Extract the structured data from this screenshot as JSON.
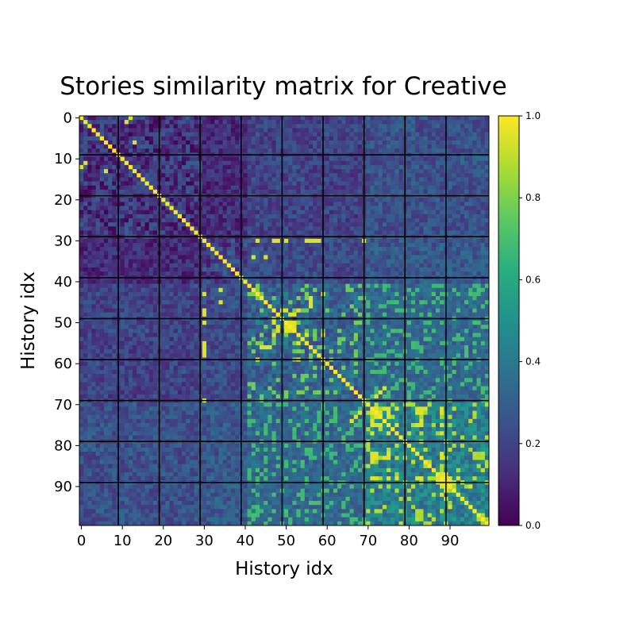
{
  "chart_data": {
    "type": "heatmap",
    "title": "Stories similarity matrix for Creative",
    "xlabel": "History idx",
    "ylabel": "History idx",
    "n": 100,
    "x_ticks": [
      0,
      10,
      20,
      30,
      40,
      50,
      60,
      70,
      80,
      90
    ],
    "y_ticks": [
      0,
      10,
      20,
      30,
      40,
      50,
      60,
      70,
      80,
      90
    ],
    "grid": true,
    "grid_every": 10,
    "colormap": "viridis",
    "vmin": 0.0,
    "vmax": 1.0,
    "colorbar_ticks": [
      "0.0",
      "0.2",
      "0.4",
      "0.6",
      "0.8",
      "1.0"
    ],
    "colorbar_position": "right",
    "diagonal_value": 1.0,
    "clusters": [
      {
        "range": [
          0,
          29
        ],
        "typical_value": 0.15
      },
      {
        "range": [
          30,
          40
        ],
        "typical_value": 0.2
      },
      {
        "range": [
          41,
          69
        ],
        "typical_value": 0.35
      },
      {
        "range": [
          70,
          99
        ],
        "typical_value": 0.45
      }
    ],
    "high_similarity_cells": [
      [
        0,
        12
      ],
      [
        12,
        0
      ],
      [
        11,
        1
      ],
      [
        1,
        11
      ],
      [
        6,
        13
      ],
      [
        13,
        6
      ],
      [
        30,
        43
      ],
      [
        43,
        30
      ],
      [
        30,
        48
      ],
      [
        48,
        30
      ],
      [
        30,
        50
      ],
      [
        50,
        30
      ],
      [
        30,
        56
      ],
      [
        56,
        30
      ],
      [
        30,
        57
      ],
      [
        57,
        30
      ],
      [
        30,
        58
      ],
      [
        58,
        30
      ],
      [
        30,
        69
      ],
      [
        69,
        30
      ],
      [
        34,
        45
      ],
      [
        45,
        34
      ],
      [
        42,
        34
      ],
      [
        34,
        42
      ],
      [
        44,
        56
      ],
      [
        56,
        44
      ],
      [
        45,
        56
      ],
      [
        56,
        45
      ],
      [
        46,
        56
      ],
      [
        56,
        46
      ],
      [
        47,
        30
      ],
      [
        30,
        47
      ],
      [
        47,
        49
      ],
      [
        49,
        47
      ],
      [
        47,
        50
      ],
      [
        50,
        47
      ],
      [
        48,
        51
      ],
      [
        51,
        48
      ],
      [
        48,
        52
      ],
      [
        52,
        48
      ],
      [
        50,
        51
      ],
      [
        51,
        50
      ],
      [
        50,
        52
      ],
      [
        52,
        50
      ],
      [
        51,
        52
      ],
      [
        52,
        51
      ],
      [
        53,
        47
      ],
      [
        47,
        53
      ],
      [
        53,
        55
      ],
      [
        55,
        53
      ],
      [
        55,
        30
      ],
      [
        30,
        55
      ],
      [
        59,
        43
      ],
      [
        43,
        59
      ],
      [
        59,
        53
      ],
      [
        53,
        59
      ],
      [
        69,
        30
      ],
      [
        72,
        71
      ],
      [
        71,
        72
      ],
      [
        72,
        73
      ],
      [
        73,
        72
      ],
      [
        75,
        71
      ],
      [
        71,
        75
      ],
      [
        75,
        72
      ],
      [
        72,
        75
      ],
      [
        75,
        73
      ],
      [
        73,
        75
      ],
      [
        74,
        71
      ],
      [
        71,
        74
      ],
      [
        77,
        71
      ],
      [
        71,
        77
      ],
      [
        77,
        75
      ],
      [
        75,
        77
      ],
      [
        82,
        71
      ],
      [
        71,
        82
      ],
      [
        82,
        72
      ],
      [
        72,
        82
      ],
      [
        82,
        75
      ],
      [
        75,
        82
      ],
      [
        83,
        71
      ],
      [
        71,
        83
      ],
      [
        83,
        72
      ],
      [
        72,
        83
      ],
      [
        83,
        74
      ],
      [
        74,
        83
      ],
      [
        83,
        75
      ],
      [
        75,
        83
      ],
      [
        84,
        71
      ],
      [
        71,
        84
      ],
      [
        88,
        71
      ],
      [
        71,
        88
      ],
      [
        88,
        72
      ],
      [
        72,
        88
      ],
      [
        88,
        75
      ],
      [
        75,
        88
      ],
      [
        88,
        77
      ],
      [
        77,
        88
      ],
      [
        88,
        82
      ],
      [
        82,
        88
      ],
      [
        88,
        83
      ],
      [
        83,
        88
      ],
      [
        88,
        87
      ],
      [
        87,
        88
      ],
      [
        89,
        87
      ],
      [
        87,
        89
      ],
      [
        89,
        88
      ],
      [
        88,
        89
      ],
      [
        90,
        88
      ],
      [
        88,
        90
      ],
      [
        90,
        89
      ],
      [
        89,
        90
      ],
      [
        91,
        89
      ],
      [
        89,
        91
      ],
      [
        92,
        88
      ],
      [
        88,
        92
      ],
      [
        93,
        89
      ],
      [
        89,
        93
      ],
      [
        90,
        95
      ],
      [
        95,
        90
      ],
      [
        72,
        68
      ],
      [
        68,
        72
      ],
      [
        73,
        67
      ],
      [
        67,
        73
      ],
      [
        74,
        66
      ],
      [
        66,
        74
      ]
    ]
  }
}
